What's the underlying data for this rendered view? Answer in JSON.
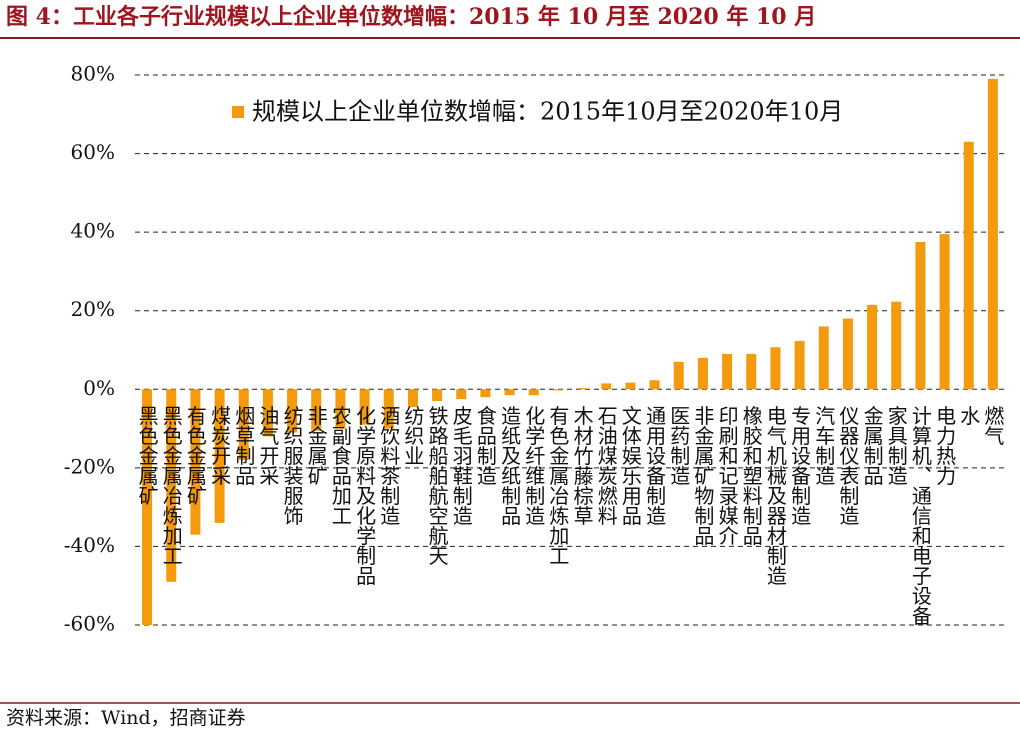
{
  "chart_data": {
    "type": "bar",
    "title": "图 4：工业各子行业规模以上企业单位数增幅：2015 年 10 月至 2020 年 10 月",
    "source": "资料来源：Wind，招商证券",
    "categories": [
      "黑色金属矿",
      "黑色金属冶炼加工",
      "有色金属矿",
      "煤炭开采",
      "烟草制品",
      "油气开采",
      "纺织服装服饰",
      "非金属矿",
      "农副食品加工",
      "化学原料及化学制品",
      "酒饮料茶制造",
      "纺织业",
      "铁路船舶航空航天",
      "皮毛羽鞋制造",
      "食品制造",
      "造纸及纸制品",
      "化学纤维制造",
      "有色金属冶炼加工",
      "木材竹藤棕草",
      "石油煤炭燃料",
      "文体娱乐用品",
      "通用设备制造",
      "医药制造",
      "非金属矿物制品",
      "印刷和记录媒介",
      "橡胶和塑料制品",
      "电气机械及器材制造",
      "专用设备制造",
      "汽车制造",
      "仪器仪表制造",
      "金属制品",
      "家具制造",
      "计算机、通信和电子设备",
      "电力热力",
      "水",
      "燃气"
    ],
    "series": [
      {
        "name": "规模以上企业单位数增幅：2015年10月至2020年10月",
        "color": "#f59a0c",
        "values": [
          -60,
          -49,
          -37,
          -34,
          -18,
          -12,
          -11,
          -10.5,
          -10,
          -9,
          -10,
          -4.5,
          -3,
          -2.5,
          -2,
          -1.5,
          -1.5,
          -0.3,
          0.3,
          1.5,
          1.7,
          2.3,
          7,
          8,
          9,
          9,
          10.7,
          12.3,
          16,
          18,
          21.5,
          22.3,
          37.5,
          39.5,
          63,
          79
        ]
      }
    ],
    "ylim": [
      -60,
      80
    ],
    "yticks": [
      {
        "value": -60,
        "label": "-60%"
      },
      {
        "value": -40,
        "label": "-40%"
      },
      {
        "value": -20,
        "label": "-20%"
      },
      {
        "value": 0,
        "label": "0%"
      },
      {
        "value": 20,
        "label": "20%"
      },
      {
        "value": 40,
        "label": "40%"
      },
      {
        "value": 60,
        "label": "60%"
      },
      {
        "value": 80,
        "label": "80%"
      }
    ],
    "grid": true
  }
}
